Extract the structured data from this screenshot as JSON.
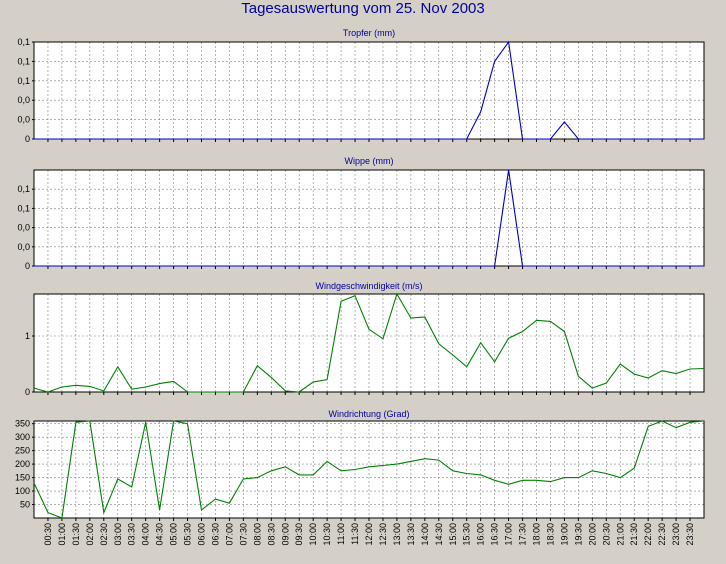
{
  "title": "Tagesauswertung vom 25. Nov 2003",
  "colors": {
    "background": "#d4d0c8",
    "title": "#0000a0",
    "rain": "#0000c0",
    "wind": "#008000",
    "grid": "#808080"
  },
  "chart_data": [
    {
      "type": "line",
      "title": "Tropfer (mm)",
      "ylim": [
        0,
        0.125
      ],
      "ytick_values": [
        0,
        0.025,
        0.05,
        0.075,
        0.1,
        0.125
      ],
      "ytick_labels": [
        "0",
        "0,0",
        "0,0",
        "0,1",
        "0,1",
        "0,1"
      ],
      "grid": true,
      "color": "#0000c0",
      "x": [
        0,
        15.5,
        16,
        16.5,
        17,
        17.5,
        18,
        18.5,
        19,
        19.5,
        20,
        24
      ],
      "y": [
        0,
        0,
        0.035,
        0.1,
        0.125,
        0.0,
        0.0,
        0.0,
        0.022,
        0.0,
        0,
        0
      ]
    },
    {
      "type": "line",
      "title": "Wippe (mm)",
      "ylim": [
        0,
        0.13
      ],
      "ytick_values": [
        0,
        0.026,
        0.052,
        0.078,
        0.104
      ],
      "ytick_labels": [
        "0",
        "0,0",
        "0,0",
        "0,1",
        "0,1"
      ],
      "grid": true,
      "color": "#0000c0",
      "x": [
        0,
        16.5,
        17,
        17.5,
        24
      ],
      "y": [
        0,
        0,
        0.13,
        0,
        0
      ]
    },
    {
      "type": "line",
      "title": "Windgeschwindigkeit (m/s)",
      "ylim": [
        0,
        1.75
      ],
      "ytick_values": [
        0,
        1
      ],
      "ytick_labels": [
        "0",
        "1"
      ],
      "grid": true,
      "color": "#008000",
      "x": [
        0,
        0.5,
        1,
        1.5,
        2,
        2.5,
        3,
        3.5,
        4,
        4.5,
        5,
        5.5,
        6,
        6.5,
        7,
        7.5,
        8,
        8.5,
        9,
        9.5,
        10,
        10.5,
        11,
        11.5,
        12,
        12.5,
        13,
        13.5,
        14,
        14.5,
        15,
        15.5,
        16,
        16.5,
        17,
        17.5,
        18,
        18.5,
        19,
        19.5,
        20,
        20.5,
        21,
        21.5,
        22,
        22.5,
        23,
        23.5,
        24
      ],
      "y": [
        0.07,
        0.0,
        0.09,
        0.12,
        0.1,
        0.02,
        0.45,
        0.05,
        0.09,
        0.15,
        0.19,
        0.0,
        0.0,
        0.0,
        0.0,
        0.0,
        0.47,
        0.26,
        0.02,
        0.0,
        0.18,
        0.22,
        1.62,
        1.72,
        1.12,
        0.95,
        1.75,
        1.32,
        1.34,
        0.86,
        0.66,
        0.45,
        0.88,
        0.54,
        0.96,
        1.08,
        1.28,
        1.26,
        1.08,
        0.28,
        0.07,
        0.16,
        0.5,
        0.32,
        0.25,
        0.38,
        0.33,
        0.41,
        0.42
      ]
    },
    {
      "type": "line",
      "title": "Windrichtung (Grad)",
      "ylim": [
        0,
        360
      ],
      "ytick_values": [
        50,
        100,
        150,
        200,
        250,
        300,
        350
      ],
      "ytick_labels": [
        "50",
        "100",
        "150",
        "200",
        "250",
        "300",
        "350"
      ],
      "grid": true,
      "color": "#008000",
      "x": [
        0,
        0.5,
        1,
        1.5,
        2,
        2.5,
        3,
        3.5,
        4,
        4.5,
        5,
        5.5,
        6,
        6.5,
        7,
        7.5,
        8,
        8.5,
        9,
        9.5,
        10,
        10.5,
        11,
        11.5,
        12,
        12.5,
        13,
        13.5,
        14,
        14.5,
        15,
        15.5,
        16,
        16.5,
        17,
        17.5,
        18,
        18.5,
        19,
        19.5,
        20,
        20.5,
        21,
        21.5,
        22,
        22.5,
        23,
        23.5,
        24
      ],
      "y": [
        130,
        20,
        0,
        355,
        360,
        20,
        145,
        115,
        355,
        30,
        360,
        350,
        30,
        70,
        55,
        145,
        150,
        175,
        190,
        160,
        160,
        210,
        175,
        180,
        190,
        195,
        200,
        210,
        220,
        215,
        175,
        165,
        160,
        140,
        125,
        140,
        140,
        135,
        150,
        150,
        175,
        165,
        150,
        185,
        340,
        360,
        335,
        355,
        360
      ]
    }
  ],
  "x_axis": {
    "tick_labels": [
      "00:30",
      "01:00",
      "01:30",
      "02:00",
      "02:30",
      "03:00",
      "03:30",
      "04:00",
      "04:30",
      "05:00",
      "05:30",
      "06:00",
      "06:30",
      "07:00",
      "07:30",
      "08:00",
      "08:30",
      "09:00",
      "09:30",
      "10:00",
      "10:30",
      "11:00",
      "11:30",
      "12:00",
      "12:30",
      "13:00",
      "13:30",
      "14:00",
      "14:30",
      "15:00",
      "15:30",
      "16:00",
      "16:30",
      "17:00",
      "17:30",
      "18:00",
      "18:30",
      "19:00",
      "19:30",
      "20:00",
      "20:30",
      "21:00",
      "21:30",
      "22:00",
      "22:30",
      "23:00",
      "23:30"
    ],
    "xlim": [
      0,
      24
    ]
  }
}
